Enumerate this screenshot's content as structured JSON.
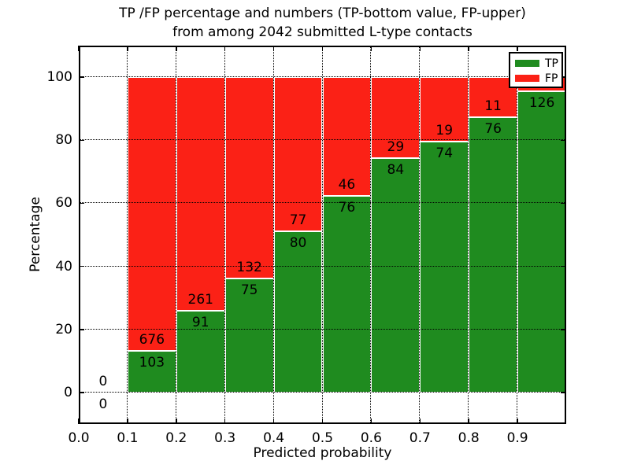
{
  "title": {
    "line1": "TP /FP percentage and numbers (TP-bottom value, FP-upper)",
    "line2": "from among 2042 submitted L-type contacts"
  },
  "axes": {
    "xlabel": "Predicted probability",
    "ylabel": "Percentage",
    "xticks": [
      "0.0",
      "0.1",
      "0.2",
      "0.3",
      "0.4",
      "0.5",
      "0.6",
      "0.7",
      "0.8",
      "0.9"
    ],
    "xtick_values": [
      0.0,
      0.1,
      0.2,
      0.3,
      0.4,
      0.5,
      0.6,
      0.7,
      0.8,
      0.9
    ],
    "yticks": [
      "0",
      "20",
      "40",
      "60",
      "80",
      "100"
    ],
    "ytick_values": [
      0,
      20,
      40,
      60,
      80,
      100
    ],
    "xlim": [
      0.0,
      1.0
    ],
    "ylim": [
      -10,
      110
    ],
    "grid_style": "dotted"
  },
  "colors": {
    "tp_green": "#1f8b1f",
    "fp_red": "#fb2116",
    "bar_edge": "#ffffff",
    "grid": "#000000",
    "background": "#ffffff",
    "text": "#000000"
  },
  "legend": {
    "position": "upper right",
    "items": [
      {
        "label": "TP",
        "color": "#1f8b1f"
      },
      {
        "label": "FP",
        "color": "#fb2116"
      }
    ]
  },
  "chart_data": {
    "type": "bar",
    "stacked": true,
    "xlabel": "Predicted probability",
    "ylabel": "Percentage",
    "bins": [
      {
        "x_range": [
          0.0,
          0.1
        ],
        "tp": 0,
        "fp": 0,
        "tp_pct": 0.0,
        "tp_label": "0",
        "fp_label": "0"
      },
      {
        "x_range": [
          0.1,
          0.2
        ],
        "tp": 103,
        "fp": 676,
        "tp_pct": 13.2,
        "tp_label": "103",
        "fp_label": "676"
      },
      {
        "x_range": [
          0.2,
          0.3
        ],
        "tp": 91,
        "fp": 261,
        "tp_pct": 25.9,
        "tp_label": "91",
        "fp_label": "261"
      },
      {
        "x_range": [
          0.3,
          0.4
        ],
        "tp": 75,
        "fp": 132,
        "tp_pct": 36.2,
        "tp_label": "75",
        "fp_label": "132"
      },
      {
        "x_range": [
          0.4,
          0.5
        ],
        "tp": 80,
        "fp": 77,
        "tp_pct": 51.0,
        "tp_label": "80",
        "fp_label": "77"
      },
      {
        "x_range": [
          0.5,
          0.6
        ],
        "tp": 76,
        "fp": 46,
        "tp_pct": 62.3,
        "tp_label": "76",
        "fp_label": "46"
      },
      {
        "x_range": [
          0.6,
          0.7
        ],
        "tp": 84,
        "fp": 29,
        "tp_pct": 74.3,
        "tp_label": "84",
        "fp_label": "29"
      },
      {
        "x_range": [
          0.7,
          0.8
        ],
        "tp": 74,
        "fp": 19,
        "tp_pct": 79.6,
        "tp_label": "74",
        "fp_label": "19"
      },
      {
        "x_range": [
          0.8,
          0.9
        ],
        "tp": 76,
        "fp": 11,
        "tp_pct": 87.4,
        "tp_label": "76",
        "fp_label": "11"
      },
      {
        "x_range": [
          0.9,
          1.0
        ],
        "tp": 126,
        "fp": null,
        "tp_pct": 95.5,
        "tp_label": "126",
        "fp_label": ""
      }
    ]
  }
}
